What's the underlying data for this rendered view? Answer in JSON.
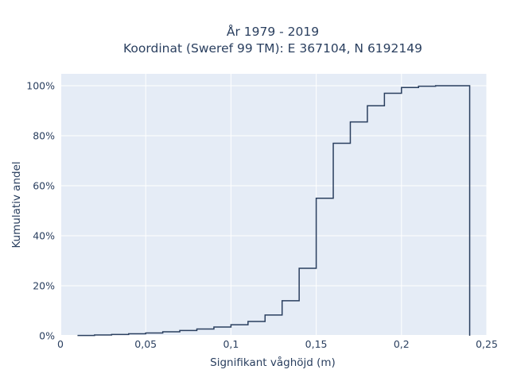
{
  "chart_data": {
    "type": "line",
    "step": "hv",
    "title_line1": "År 1979 - 2019",
    "title_line2": "Koordinat (Sweref 99 TM): E 367104, N 6192149",
    "xlabel": "Signifikant våghöjd (m)",
    "ylabel": "Kumulativ andel",
    "xlim": [
      0,
      0.25
    ],
    "ylim": [
      0,
      1.05
    ],
    "x_ticks": [
      0,
      0.05,
      0.1,
      0.15,
      0.2,
      0.25
    ],
    "x_tick_labels": [
      "0",
      "0,05",
      "0,1",
      "0,15",
      "0,2",
      "0,25"
    ],
    "y_ticks": [
      0,
      0.2,
      0.4,
      0.6,
      0.8,
      1.0
    ],
    "y_tick_labels": [
      "0%",
      "20%",
      "40%",
      "60%",
      "80%",
      "100%"
    ],
    "grid": true,
    "colors": {
      "plot_bg": "#e5ecf6",
      "grid": "#ffffff",
      "line": "#2a3f5f",
      "text": "#2a3f5f"
    },
    "x": [
      0.01,
      0.02,
      0.03,
      0.04,
      0.05,
      0.06,
      0.07,
      0.08,
      0.09,
      0.1,
      0.11,
      0.12,
      0.13,
      0.14,
      0.15,
      0.16,
      0.17,
      0.18,
      0.19,
      0.2,
      0.21,
      0.22,
      0.23,
      0.24
    ],
    "y": [
      0.001,
      0.003,
      0.005,
      0.008,
      0.011,
      0.016,
      0.021,
      0.027,
      0.035,
      0.044,
      0.057,
      0.083,
      0.14,
      0.27,
      0.55,
      0.77,
      0.855,
      0.92,
      0.97,
      0.993,
      0.998,
      1.0,
      1.0,
      0.0
    ]
  }
}
